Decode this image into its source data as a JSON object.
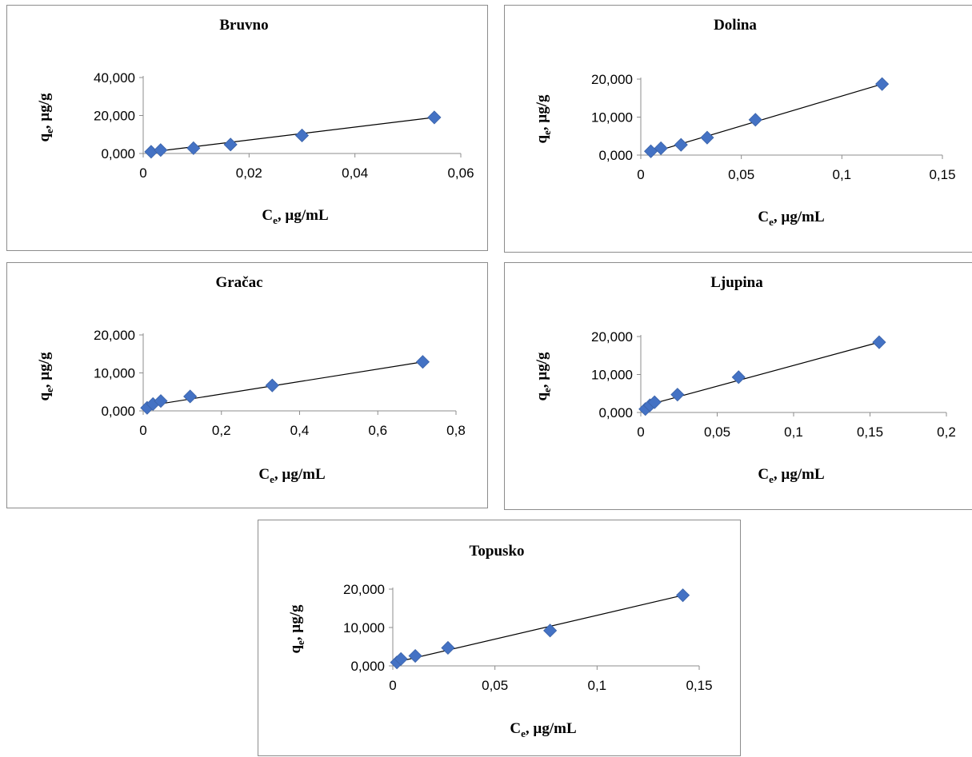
{
  "chart_data": [
    {
      "type": "scatter",
      "title": "Bruvno",
      "xlabel": {
        "main": "C",
        "sub": "e",
        "rest": ", µg/mL"
      },
      "ylabel": {
        "main": "q",
        "sub": "e",
        "rest": ", µg/g"
      },
      "xlim": [
        0,
        0.06
      ],
      "ylim": [
        0,
        40
      ],
      "x_ticks": [
        {
          "v": 0,
          "label": "0"
        },
        {
          "v": 0.02,
          "label": "0,02"
        },
        {
          "v": 0.04,
          "label": "0,04"
        },
        {
          "v": 0.06,
          "label": "0,06"
        }
      ],
      "y_ticks": [
        {
          "v": 0,
          "label": "0,000"
        },
        {
          "v": 20,
          "label": "20,000"
        },
        {
          "v": 40,
          "label": "40,000"
        }
      ],
      "points": [
        [
          0.0015,
          0.9
        ],
        [
          0.0033,
          1.8
        ],
        [
          0.0095,
          2.8
        ],
        [
          0.0165,
          4.7
        ],
        [
          0.03,
          9.5
        ],
        [
          0.055,
          19.0
        ]
      ],
      "trendline": [
        [
          0.0015,
          0.8
        ],
        [
          0.055,
          19.0
        ]
      ],
      "marker_color": "#4472C4"
    },
    {
      "type": "scatter",
      "title": "Dolina",
      "xlabel": {
        "main": "C",
        "sub": "e",
        "rest": ", µg/mL"
      },
      "ylabel": {
        "main": "q",
        "sub": "e",
        "rest": ", µg/g"
      },
      "xlim": [
        0,
        0.15
      ],
      "ylim": [
        0,
        20
      ],
      "x_ticks": [
        {
          "v": 0,
          "label": "0"
        },
        {
          "v": 0.05,
          "label": "0,05"
        },
        {
          "v": 0.1,
          "label": "0,1"
        },
        {
          "v": 0.15,
          "label": "0,15"
        }
      ],
      "y_ticks": [
        {
          "v": 0,
          "label": "0,000"
        },
        {
          "v": 10,
          "label": "10,000"
        },
        {
          "v": 20,
          "label": "20,000"
        }
      ],
      "points": [
        [
          0.005,
          1.0
        ],
        [
          0.01,
          1.8
        ],
        [
          0.02,
          2.7
        ],
        [
          0.033,
          4.6
        ],
        [
          0.057,
          9.3
        ],
        [
          0.12,
          18.7
        ]
      ],
      "trendline": [
        [
          0.005,
          0.6
        ],
        [
          0.12,
          18.7
        ]
      ],
      "marker_color": "#4472C4"
    },
    {
      "type": "scatter",
      "title": "Gračac",
      "xlabel": {
        "main": "C",
        "sub": "e",
        "rest": ", µg/mL"
      },
      "ylabel": {
        "main": "q",
        "sub": "e",
        "rest": ", µg/g"
      },
      "xlim": [
        0,
        0.8
      ],
      "ylim": [
        0,
        20
      ],
      "x_ticks": [
        {
          "v": 0,
          "label": "0"
        },
        {
          "v": 0.2,
          "label": "0,2"
        },
        {
          "v": 0.4,
          "label": "0,4"
        },
        {
          "v": 0.6,
          "label": "0,6"
        },
        {
          "v": 0.8,
          "label": "0,8"
        }
      ],
      "y_ticks": [
        {
          "v": 0,
          "label": "0,000"
        },
        {
          "v": 10,
          "label": "10,000"
        },
        {
          "v": 20,
          "label": "20,000"
        }
      ],
      "points": [
        [
          0.01,
          0.8
        ],
        [
          0.025,
          1.8
        ],
        [
          0.045,
          2.6
        ],
        [
          0.12,
          3.8
        ],
        [
          0.33,
          6.7
        ],
        [
          0.715,
          12.9
        ]
      ],
      "trendline": [
        [
          0.01,
          1.3
        ],
        [
          0.715,
          12.9
        ]
      ],
      "marker_color": "#4472C4"
    },
    {
      "type": "scatter",
      "title": "Ljupina",
      "xlabel": {
        "main": "C",
        "sub": "e",
        "rest": ", µg/mL"
      },
      "ylabel": {
        "main": "q",
        "sub": "e",
        "rest": ", µg/g"
      },
      "xlim": [
        0,
        0.2
      ],
      "ylim": [
        0,
        20
      ],
      "x_ticks": [
        {
          "v": 0,
          "label": "0"
        },
        {
          "v": 0.05,
          "label": "0,05"
        },
        {
          "v": 0.1,
          "label": "0,1"
        },
        {
          "v": 0.15,
          "label": "0,15"
        },
        {
          "v": 0.2,
          "label": "0,2"
        }
      ],
      "y_ticks": [
        {
          "v": 0,
          "label": "0,000"
        },
        {
          "v": 10,
          "label": "10,000"
        },
        {
          "v": 20,
          "label": "20,000"
        }
      ],
      "points": [
        [
          0.003,
          0.9
        ],
        [
          0.006,
          1.9
        ],
        [
          0.009,
          2.7
        ],
        [
          0.024,
          4.7
        ],
        [
          0.064,
          9.3
        ],
        [
          0.156,
          18.5
        ]
      ],
      "trendline": [
        [
          0.003,
          1.8
        ],
        [
          0.156,
          18.5
        ]
      ],
      "marker_color": "#4472C4"
    },
    {
      "type": "scatter",
      "title": "Topusko",
      "xlabel": {
        "main": "C",
        "sub": "e",
        "rest": ", µg/mL"
      },
      "ylabel": {
        "main": "q",
        "sub": "e",
        "rest": ", µg/g"
      },
      "xlim": [
        0,
        0.15
      ],
      "ylim": [
        0,
        20
      ],
      "x_ticks": [
        {
          "v": 0,
          "label": "0"
        },
        {
          "v": 0.05,
          "label": "0,05"
        },
        {
          "v": 0.1,
          "label": "0,1"
        },
        {
          "v": 0.15,
          "label": "0,15"
        }
      ],
      "y_ticks": [
        {
          "v": 0,
          "label": "0,000"
        },
        {
          "v": 10,
          "label": "10,000"
        },
        {
          "v": 20,
          "label": "20,000"
        }
      ],
      "points": [
        [
          0.002,
          0.9
        ],
        [
          0.004,
          1.8
        ],
        [
          0.011,
          2.6
        ],
        [
          0.027,
          4.7
        ],
        [
          0.077,
          9.2
        ],
        [
          0.142,
          18.4
        ]
      ],
      "trendline": [
        [
          0.002,
          1.0
        ],
        [
          0.142,
          18.4
        ]
      ],
      "marker_color": "#4472C4"
    }
  ]
}
